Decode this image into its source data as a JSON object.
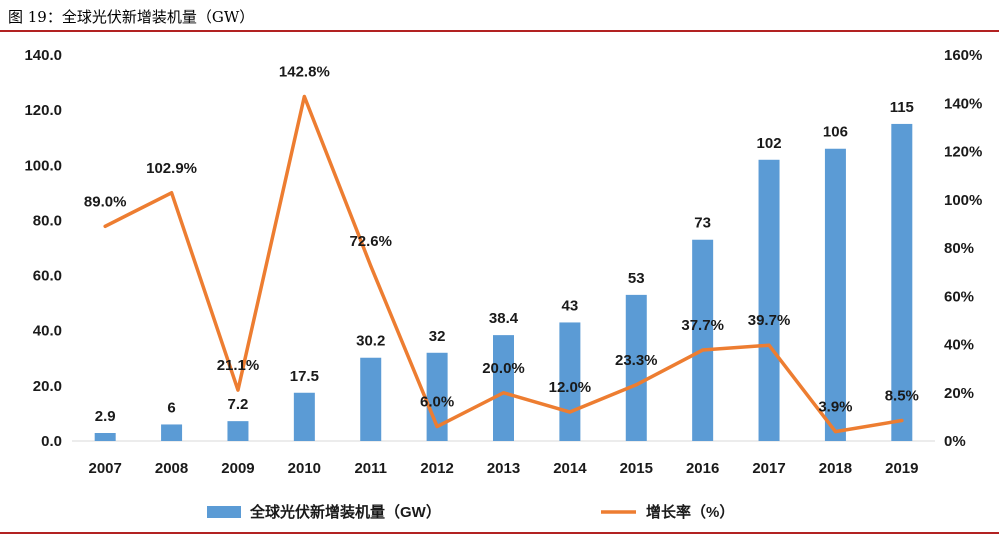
{
  "caption": "图 19：全球光伏新增装机量（GW）",
  "chart_data": {
    "type": "bar",
    "categories": [
      "2007",
      "2008",
      "2009",
      "2010",
      "2011",
      "2012",
      "2013",
      "2014",
      "2015",
      "2016",
      "2017",
      "2018",
      "2019"
    ],
    "series": [
      {
        "name": "全球光伏新增装机量（GW）",
        "kind": "bar",
        "axis": "left",
        "color": "#5b9bd5",
        "values": [
          2.9,
          6,
          7.2,
          17.5,
          30.2,
          32,
          38.4,
          43,
          53,
          73,
          102,
          106,
          115
        ],
        "labels": [
          "2.9",
          "6",
          "7.2",
          "17.5",
          "30.2",
          "32",
          "38.4",
          "43",
          "53",
          "73",
          "102",
          "106",
          "115"
        ]
      },
      {
        "name": "增长率（%）",
        "kind": "line",
        "axis": "right",
        "color": "#ed7d31",
        "values": [
          89.0,
          102.9,
          21.1,
          142.8,
          72.6,
          6.0,
          20.0,
          12.0,
          23.3,
          37.7,
          39.7,
          3.9,
          8.5
        ],
        "labels": [
          "89.0%",
          "102.9%",
          "21.1%",
          "142.8%",
          "72.6%",
          "6.0%",
          "20.0%",
          "12.0%",
          "23.3%",
          "37.7%",
          "39.7%",
          "3.9%",
          "8.5%"
        ]
      }
    ],
    "y_left": {
      "min": 0,
      "max": 140,
      "ticks": [
        "0.0",
        "20.0",
        "40.0",
        "60.0",
        "80.0",
        "100.0",
        "120.0",
        "140.0"
      ]
    },
    "y_right": {
      "min": 0,
      "max": 160,
      "ticks": [
        "0%",
        "20%",
        "40%",
        "60%",
        "80%",
        "100%",
        "120%",
        "140%",
        "160%"
      ]
    },
    "grid": false,
    "legend_position": "bottom"
  }
}
